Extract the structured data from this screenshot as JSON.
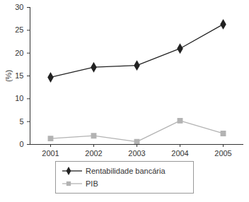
{
  "chart_data": {
    "type": "line",
    "categories": [
      "2001",
      "2002",
      "2003",
      "2004",
      "2005"
    ],
    "ylabel": "(%)",
    "ylim": [
      0,
      30
    ],
    "yticks": [
      0,
      5,
      10,
      15,
      20,
      25,
      30
    ],
    "legend": "bottom",
    "series": [
      {
        "name": "Rentabilidade bancária",
        "color": "#222222",
        "marker": "diamond",
        "values": [
          14.7,
          16.9,
          17.3,
          21.0,
          26.3
        ]
      },
      {
        "name": "PIB",
        "color": "#b3b3b3",
        "marker": "square",
        "values": [
          1.3,
          1.9,
          0.6,
          5.2,
          2.4
        ]
      }
    ]
  }
}
